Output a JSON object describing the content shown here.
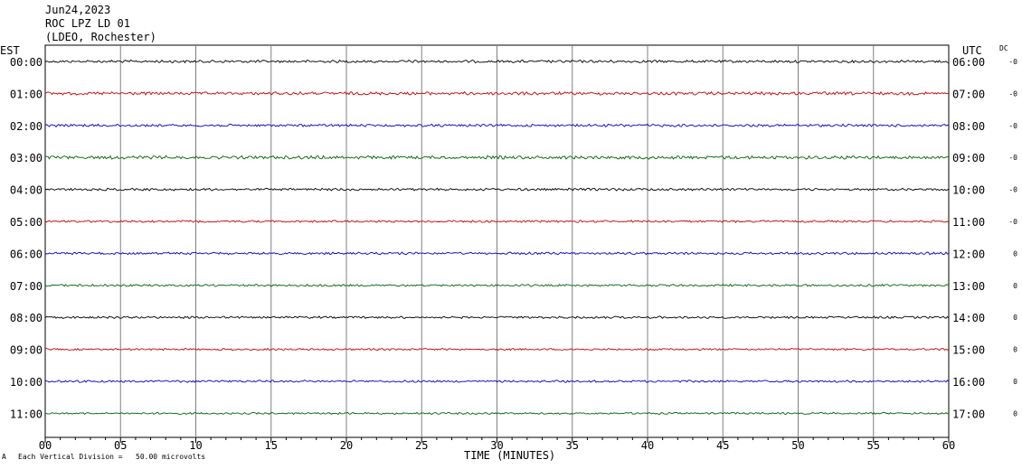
{
  "header": {
    "date": "Jun24,2023",
    "station": "ROC LPZ LD 01",
    "network": "(LDEO, Rochester)"
  },
  "left_zone": "EST",
  "right_zone": "UTC",
  "dc_label": "DC",
  "footer": {
    "mark": "A",
    "scale_text": "Each Vertical Division =   50.00 microvolts"
  },
  "chart_data": {
    "type": "line",
    "title": "",
    "xlabel": "TIME (MINUTES)",
    "ylabel": "",
    "xlim": [
      0,
      60
    ],
    "x_ticks": [
      "00",
      "05",
      "10",
      "15",
      "20",
      "25",
      "30",
      "35",
      "40",
      "45",
      "50",
      "55",
      "60"
    ],
    "grid": true,
    "traces": [
      {
        "left": "00:00",
        "right": "06:00",
        "color": "#000000",
        "dc": "-0",
        "amplitude": 1.2
      },
      {
        "left": "01:00",
        "right": "07:00",
        "color": "#cc0000",
        "dc": "-0",
        "amplitude": 1.4
      },
      {
        "left": "02:00",
        "right": "08:00",
        "color": "#0000cc",
        "dc": "-0",
        "amplitude": 1.2
      },
      {
        "left": "03:00",
        "right": "09:00",
        "color": "#006600",
        "dc": "-0",
        "amplitude": 1.5
      },
      {
        "left": "04:00",
        "right": "10:00",
        "color": "#000000",
        "dc": "-0",
        "amplitude": 1.1
      },
      {
        "left": "05:00",
        "right": "11:00",
        "color": "#cc0000",
        "dc": "-0",
        "amplitude": 1.0
      },
      {
        "left": "06:00",
        "right": "12:00",
        "color": "#0000cc",
        "dc": "0",
        "amplitude": 1.1
      },
      {
        "left": "07:00",
        "right": "13:00",
        "color": "#006600",
        "dc": "0",
        "amplitude": 1.0
      },
      {
        "left": "08:00",
        "right": "14:00",
        "color": "#000000",
        "dc": "0",
        "amplitude": 1.0
      },
      {
        "left": "09:00",
        "right": "15:00",
        "color": "#cc0000",
        "dc": "0",
        "amplitude": 0.9
      },
      {
        "left": "10:00",
        "right": "16:00",
        "color": "#0000cc",
        "dc": "0",
        "amplitude": 1.0
      },
      {
        "left": "11:00",
        "right": "17:00",
        "color": "#006600",
        "dc": "0",
        "amplitude": 0.9
      }
    ]
  }
}
